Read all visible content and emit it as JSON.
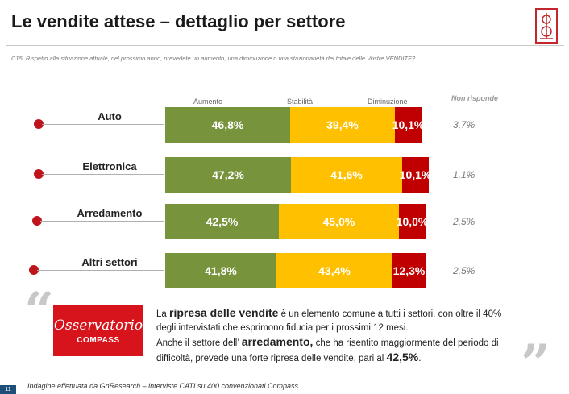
{
  "header": {
    "title": "Le vendite attese – dettaglio per settore",
    "question": "C15. Rispetto alla situazione attuale, nel prossimo anno,  prevedete un aumento, una diminuzione o una stazionarietà del totale delle Vostre VENDITE?"
  },
  "colors": {
    "aumento": "#77933c",
    "stabilita": "#ffc000",
    "diminuzione": "#c00000",
    "accent": "#d7141c"
  },
  "chart_data": {
    "type": "bar",
    "orientation": "horizontal",
    "stacked": true,
    "categories": [
      "Auto",
      "Elettronica",
      "Arredamento",
      "Altri settori"
    ],
    "series": [
      {
        "name": "Aumento",
        "values": [
          46.8,
          47.2,
          42.5,
          41.8
        ],
        "labels": [
          "46,8%",
          "47,2%",
          "42,5%",
          "41,8%"
        ]
      },
      {
        "name": "Stabilità",
        "values": [
          39.4,
          41.6,
          45.0,
          43.4
        ],
        "labels": [
          "39,4%",
          "41,6%",
          "45,0%",
          "43,4%"
        ]
      },
      {
        "name": "Diminuzione",
        "values": [
          10.1,
          10.1,
          10.0,
          12.3
        ],
        "labels": [
          "10,1%",
          "10,1%",
          "10,0%",
          "12,3%"
        ]
      }
    ],
    "non_risponde": {
      "label": "Non risponde",
      "values": [
        3.7,
        1.1,
        2.5,
        2.5
      ],
      "labels": [
        "3,7%",
        "1,1%",
        "2,5%",
        "2,5%"
      ]
    },
    "legend": [
      "Aumento",
      "Stabilità",
      "Diminuzione"
    ],
    "xlim": [
      0,
      100
    ]
  },
  "logo": {
    "title": "Osservatorio",
    "subtitle": "COMPASS"
  },
  "summary": {
    "p1_a": "La ",
    "p1_b": "ripresa delle vendite",
    "p1_c": " è un elemento comune a tutti i settori, con oltre il 40% degli intervistati che esprimono fiducia per i prossimi 12 mesi.",
    "p2_a": "Anche il settore dell’ ",
    "p2_b": "arredamento,",
    "p2_c": " che ha risentito maggiormente del periodo di difficoltà, prevede una forte ripresa delle vendite, pari al ",
    "p2_d": "42,5%",
    "p2_e": "."
  },
  "footer": {
    "note": "Indagine effettuata da GnResearch – interviste CATI su 400 convenzionati Compass",
    "page": "11"
  }
}
